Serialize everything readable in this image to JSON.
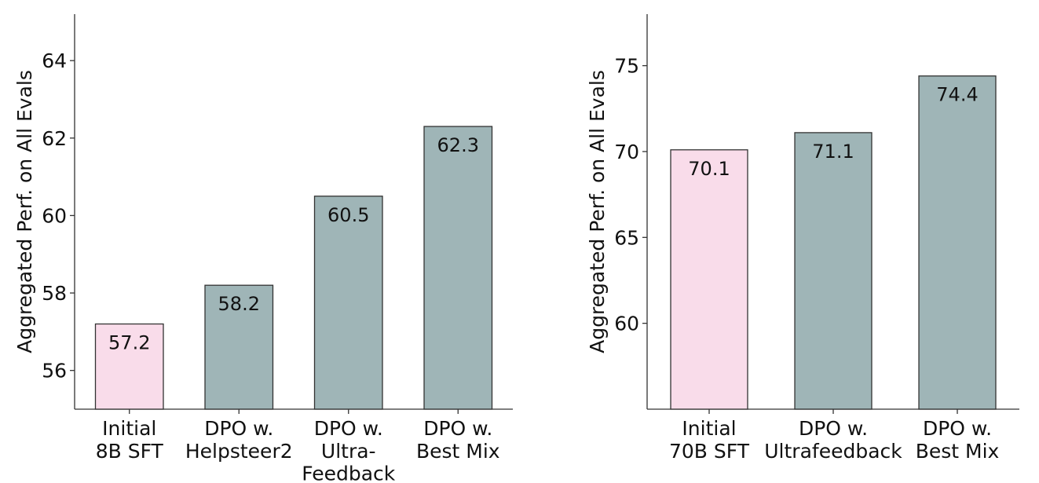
{
  "chart_data": [
    {
      "type": "bar",
      "y_label": "Aggregated Perf. on All Evals",
      "categories": [
        "Initial\n8B SFT",
        "DPO w.\nHelpsteer2",
        "DPO w.\nUltra-\nFeedback",
        "DPO w.\nBest Mix"
      ],
      "values": [
        57.2,
        58.2,
        60.5,
        62.3
      ],
      "colors": [
        "#f9dcea",
        "#9fb5b7",
        "#9fb5b7",
        "#9fb5b7"
      ],
      "ylim": [
        55,
        65.2
      ],
      "yticks": [
        56,
        58,
        60,
        62,
        64
      ]
    },
    {
      "type": "bar",
      "y_label": "Aggregated Perf. on All Evals",
      "categories": [
        "Initial\n70B SFT",
        "DPO w.\nUltrafeedback",
        "DPO w.\nBest Mix"
      ],
      "values": [
        70.1,
        71.1,
        74.4
      ],
      "colors": [
        "#f9dcea",
        "#9fb5b7",
        "#9fb5b7"
      ],
      "ylim": [
        55,
        78
      ],
      "yticks": [
        60,
        65,
        70,
        75
      ]
    }
  ]
}
